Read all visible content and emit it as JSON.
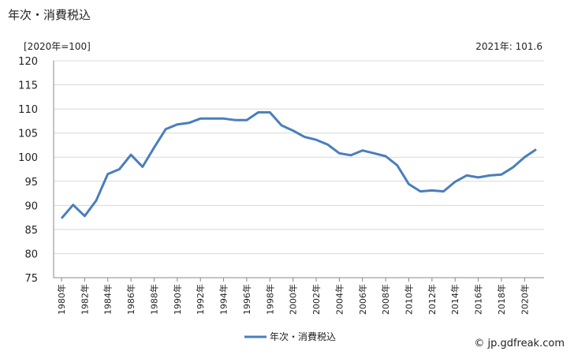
{
  "header": {
    "title": "年次・消費税込",
    "unit": "[2020年=100]",
    "latest": "2021年: 101.6"
  },
  "source": "© jp.gdfreak.com",
  "colors": {
    "line": "#4a7ebb",
    "grid": "#d9d9d9",
    "axis": "#888888"
  },
  "chart_data": {
    "type": "line",
    "x": [
      1980,
      1981,
      1982,
      1983,
      1984,
      1985,
      1986,
      1987,
      1988,
      1989,
      1990,
      1991,
      1992,
      1993,
      1994,
      1995,
      1996,
      1997,
      1998,
      1999,
      2000,
      2001,
      2002,
      2003,
      2004,
      2005,
      2006,
      2007,
      2008,
      2009,
      2010,
      2011,
      2012,
      2013,
      2014,
      2015,
      2016,
      2017,
      2018,
      2019,
      2020,
      2021
    ],
    "x_tick_labels": [
      "1980年",
      "1982年",
      "1984年",
      "1986年",
      "1988年",
      "1990年",
      "1992年",
      "1994年",
      "1996年",
      "1998年",
      "2000年",
      "2002年",
      "2004年",
      "2006年",
      "2008年",
      "2010年",
      "2012年",
      "2014年",
      "2016年",
      "2018年",
      "2020年"
    ],
    "y_tick_labels": [
      "120",
      "115",
      "110",
      "105",
      "100",
      "95",
      "90",
      "85",
      "80",
      "75"
    ],
    "ylim": [
      75,
      120
    ],
    "y_ticks": [
      120,
      115,
      110,
      105,
      100,
      95,
      90,
      85,
      80,
      75
    ],
    "series": [
      {
        "name": "年次・消費税込",
        "values": [
          87.3,
          90.1,
          87.8,
          91.0,
          96.5,
          97.5,
          100.5,
          98.0,
          102.0,
          105.8,
          106.8,
          107.1,
          108.0,
          108.0,
          108.0,
          107.7,
          107.7,
          109.3,
          109.3,
          106.6,
          105.5,
          104.2,
          103.6,
          102.6,
          100.8,
          100.4,
          101.4,
          100.8,
          100.2,
          98.3,
          94.4,
          92.9,
          93.1,
          92.9,
          94.9,
          96.2,
          95.8,
          96.2,
          96.4,
          97.9,
          100.0,
          101.6
        ]
      }
    ],
    "grid": true,
    "legend": "bottom"
  }
}
